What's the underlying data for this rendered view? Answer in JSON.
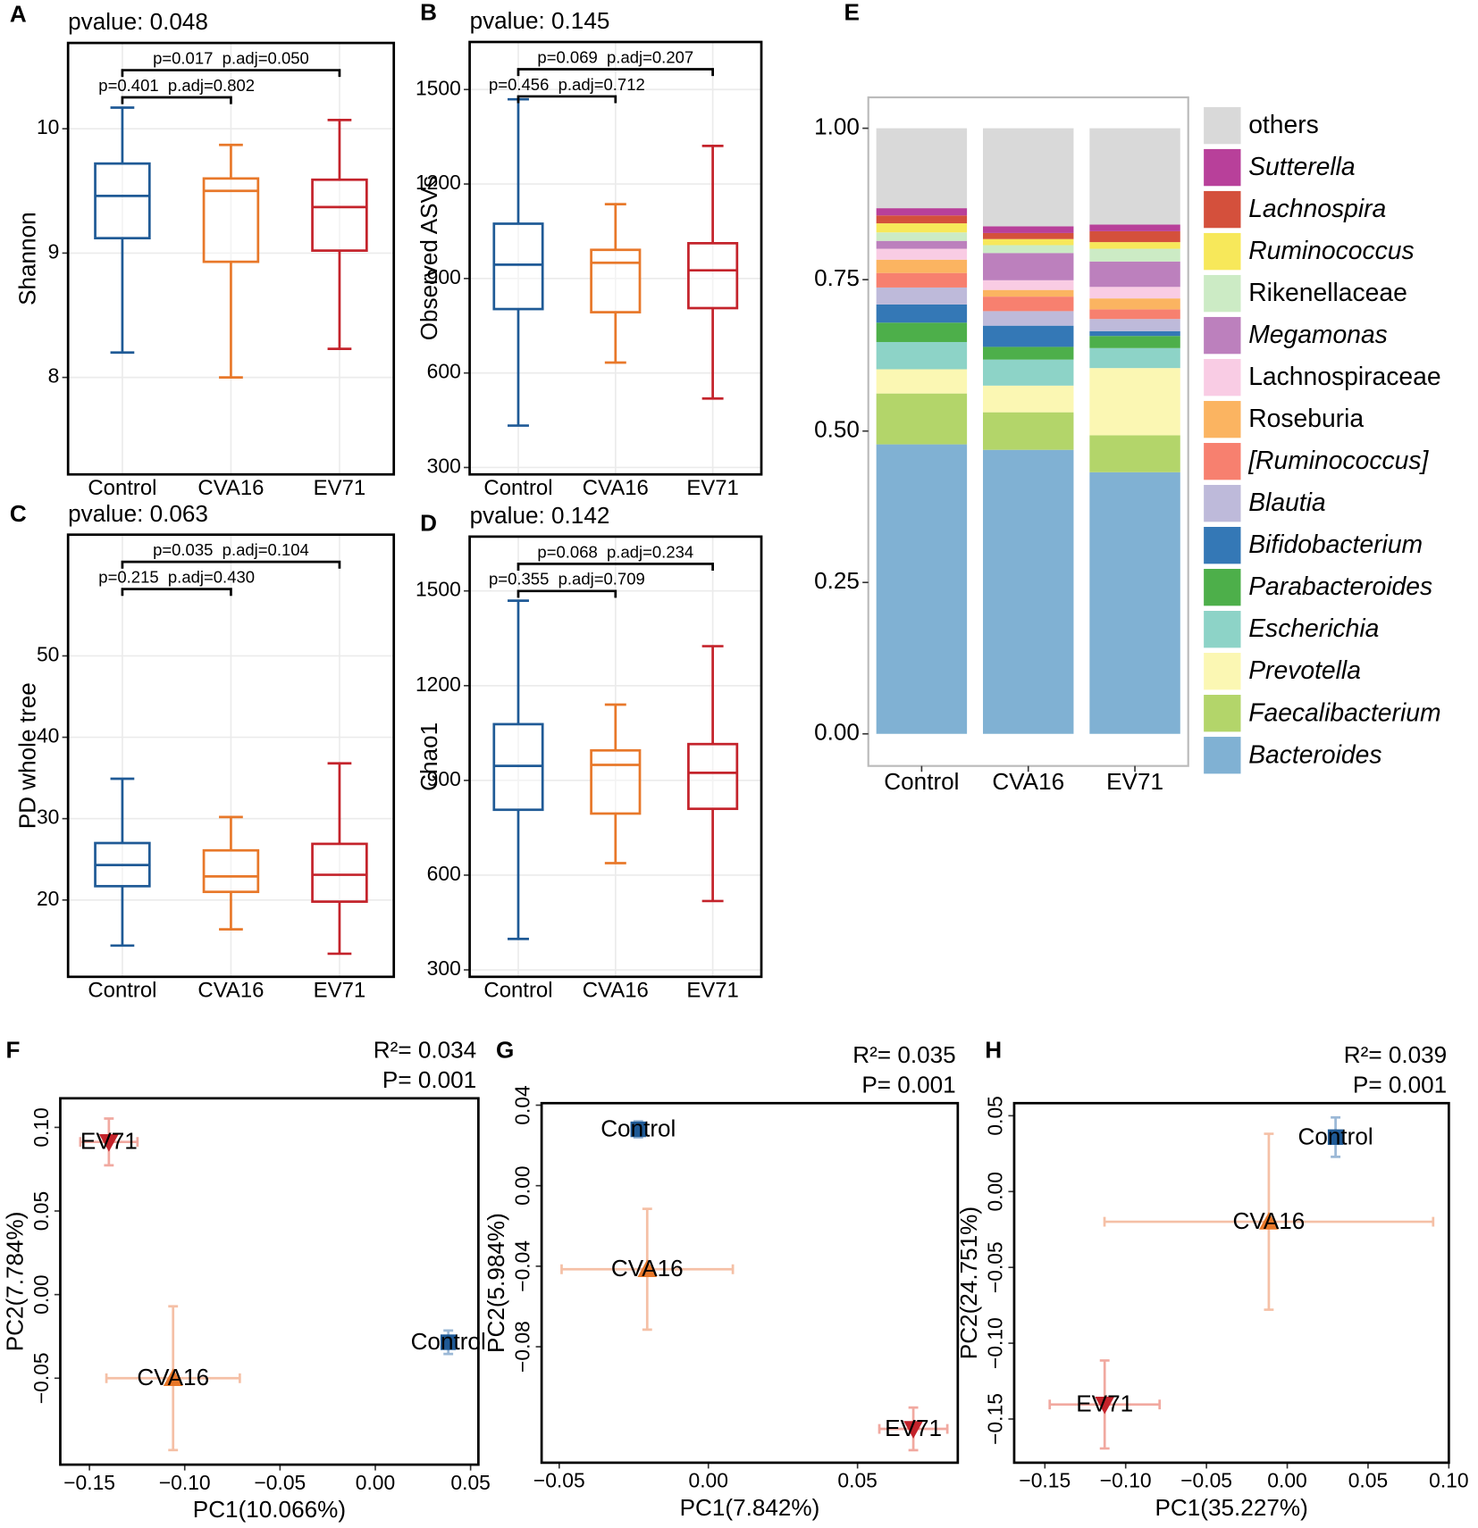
{
  "chart_data": [
    {
      "type": "box",
      "panel": "A",
      "title": "pvalue: 0.048",
      "ylabel": "Shannon",
      "categories": [
        "Control",
        "CVA16",
        "EV71"
      ],
      "colors": [
        "#1f5a96",
        "#e8782a",
        "#c4232b"
      ],
      "boxes": [
        {
          "min": 8.2,
          "q1": 9.12,
          "median": 9.46,
          "q3": 9.72,
          "max": 10.17
        },
        {
          "min": 8.0,
          "q1": 8.93,
          "median": 9.5,
          "q3": 9.6,
          "max": 9.87
        },
        {
          "min": 8.23,
          "q1": 9.02,
          "median": 9.37,
          "q3": 9.59,
          "max": 10.07
        }
      ],
      "ylim": [
        7.22,
        10.69
      ],
      "yticks": [
        8,
        9,
        10
      ],
      "grid": true,
      "comparisons": [
        {
          "label": "p=0.401  p.adj=0.802",
          "pair": [
            "Control",
            "CVA16"
          ]
        },
        {
          "label": "p=0.017  p.adj=0.050",
          "pair": [
            "Control",
            "EV71"
          ]
        }
      ]
    },
    {
      "type": "box",
      "panel": "B",
      "title": "pvalue: 0.145",
      "ylabel": "Observed ASVs",
      "categories": [
        "Control",
        "CVA16",
        "EV71"
      ],
      "colors": [
        "#1f5a96",
        "#e8782a",
        "#c4232b"
      ],
      "boxes": [
        {
          "min": 433,
          "q1": 803,
          "median": 944,
          "q3": 1074,
          "max": 1469
        },
        {
          "min": 633,
          "q1": 793,
          "median": 950,
          "q3": 991,
          "max": 1136
        },
        {
          "min": 519,
          "q1": 806,
          "median": 926,
          "q3": 1012,
          "max": 1321
        }
      ],
      "ylim": [
        278,
        1651
      ],
      "yticks": [
        300,
        600,
        900,
        1200,
        1500
      ],
      "grid": true,
      "comparisons": [
        {
          "label": "p=0.456  p.adj=0.712",
          "pair": [
            "Control",
            "CVA16"
          ]
        },
        {
          "label": "p=0.069  p.adj=0.207",
          "pair": [
            "Control",
            "EV71"
          ]
        }
      ]
    },
    {
      "type": "box",
      "panel": "C",
      "title": "pvalue: 0.063",
      "ylabel": "PD whole tree",
      "categories": [
        "Control",
        "CVA16",
        "EV71"
      ],
      "colors": [
        "#1f5a96",
        "#e8782a",
        "#c4232b"
      ],
      "boxes": [
        {
          "min": 14.4,
          "q1": 21.7,
          "median": 24.3,
          "q3": 27.0,
          "max": 34.9
        },
        {
          "min": 16.4,
          "q1": 21.0,
          "median": 22.9,
          "q3": 26.1,
          "max": 30.2
        },
        {
          "min": 13.4,
          "q1": 19.8,
          "median": 23.1,
          "q3": 26.9,
          "max": 36.8
        }
      ],
      "ylim": [
        10.56,
        64.9
      ],
      "yticks": [
        20,
        30,
        40,
        50
      ],
      "grid": true,
      "comparisons": [
        {
          "label": "p=0.215  p.adj=0.430",
          "pair": [
            "Control",
            "CVA16"
          ]
        },
        {
          "label": "p=0.035  p.adj=0.104",
          "pair": [
            "Control",
            "EV71"
          ]
        }
      ]
    },
    {
      "type": "box",
      "panel": "D",
      "title": "pvalue: 0.142",
      "ylabel": "Chao1",
      "categories": [
        "Control",
        "CVA16",
        "EV71"
      ],
      "colors": [
        "#1f5a96",
        "#e8782a",
        "#c4232b"
      ],
      "boxes": [
        {
          "min": 398,
          "q1": 807,
          "median": 946,
          "q3": 1078,
          "max": 1469
        },
        {
          "min": 638,
          "q1": 795,
          "median": 949,
          "q3": 995,
          "max": 1140
        },
        {
          "min": 518,
          "q1": 810,
          "median": 924,
          "q3": 1015,
          "max": 1325
        }
      ],
      "ylim": [
        278,
        1672
      ],
      "yticks": [
        300,
        600,
        900,
        1200,
        1500
      ],
      "grid": true,
      "comparisons": [
        {
          "label": "p=0.355  p.adj=0.709",
          "pair": [
            "Control",
            "CVA16"
          ]
        },
        {
          "label": "p=0.068  p.adj=0.234",
          "pair": [
            "Control",
            "EV71"
          ]
        }
      ]
    },
    {
      "type": "stacked_bar",
      "panel": "E",
      "categories": [
        "Control",
        "CVA16",
        "EV71"
      ],
      "ylim": [
        -0.053,
        1.051
      ],
      "yticks": [
        {
          "value": 0,
          "label": "0.00"
        },
        {
          "value": 0.25,
          "label": "0.25"
        },
        {
          "value": 0.5,
          "label": "0.50"
        },
        {
          "value": 0.75,
          "label": "0.75"
        },
        {
          "value": 1,
          "label": "1.00"
        }
      ],
      "series": [
        {
          "name": "Bacteroides",
          "color": "#80b1d3",
          "italic": true,
          "values": [
            0.478,
            0.469,
            0.432
          ]
        },
        {
          "name": "Faecalibacterium",
          "color": "#b3d56a",
          "italic": true,
          "values": [
            0.084,
            0.062,
            0.061
          ]
        },
        {
          "name": "Prevotella",
          "color": "#fbf7b3",
          "italic": true,
          "values": [
            0.04,
            0.044,
            0.111
          ]
        },
        {
          "name": "Escherichia",
          "color": "#8dd3c7",
          "italic": true,
          "values": [
            0.045,
            0.043,
            0.033
          ]
        },
        {
          "name": "Parabacteroides",
          "color": "#4daf4a",
          "italic": true,
          "values": [
            0.032,
            0.021,
            0.02
          ]
        },
        {
          "name": "Bifidobacterium",
          "color": "#3478b6",
          "italic": true,
          "values": [
            0.03,
            0.035,
            0.008
          ]
        },
        {
          "name": "Blautia",
          "color": "#bebada",
          "italic": true,
          "values": [
            0.028,
            0.024,
            0.02
          ]
        },
        {
          "name": "[Ruminococcus]",
          "color": "#f7806f",
          "italic": true,
          "values": [
            0.024,
            0.024,
            0.016
          ]
        },
        {
          "name": "Roseburia",
          "color": "#fbb461",
          "italic": false,
          "values": [
            0.022,
            0.011,
            0.018
          ]
        },
        {
          "name": "Lachnospiraceae",
          "color": "#f9cce4",
          "italic": false,
          "values": [
            0.018,
            0.016,
            0.019
          ]
        },
        {
          "name": "Megamonas",
          "color": "#bc80bd",
          "italic": true,
          "values": [
            0.013,
            0.045,
            0.042
          ]
        },
        {
          "name": "Rikenellaceae",
          "color": "#ccebc5",
          "italic": false,
          "values": [
            0.014,
            0.013,
            0.021
          ]
        },
        {
          "name": "Ruminococcus",
          "color": "#f7e85a",
          "italic": true,
          "values": [
            0.015,
            0.01,
            0.011
          ]
        },
        {
          "name": "Lachnospira",
          "color": "#d4503c",
          "italic": true,
          "values": [
            0.013,
            0.01,
            0.018
          ]
        },
        {
          "name": "Sutterella",
          "color": "#b8409a",
          "italic": true,
          "values": [
            0.012,
            0.011,
            0.011
          ]
        },
        {
          "name": "others",
          "color": "#d9d9d9",
          "italic": false,
          "values": [
            0.132,
            0.162,
            0.159
          ]
        }
      ]
    },
    {
      "type": "scatter",
      "panel": "F",
      "annotations": [
        "R²= 0.034",
        "P= 0.001"
      ],
      "xlabel": "PC1(10.066%)",
      "ylabel": "PC2(7.784%)",
      "xlim": [
        -0.1653,
        0.0541
      ],
      "ylim": [
        -0.1017,
        0.1174
      ],
      "xticks": [
        {
          "value": -0.15,
          "label": "−0.15"
        },
        {
          "value": -0.1,
          "label": "−0.10"
        },
        {
          "value": -0.05,
          "label": "−0.05"
        },
        {
          "value": 0,
          "label": "0.00"
        },
        {
          "value": 0.05,
          "label": "0.05"
        }
      ],
      "yticks": [
        {
          "value": -0.05,
          "label": "−0.05"
        },
        {
          "value": 0,
          "label": "0.00"
        },
        {
          "value": 0.05,
          "label": "0.05"
        },
        {
          "value": 0.1,
          "label": "0.10"
        }
      ],
      "series": [
        {
          "name": "Control",
          "color": "#1f5a96",
          "marker": "square",
          "error_color": "#9bb8d6",
          "x": [
            0.0383
          ],
          "y": [
            -0.0285
          ],
          "xerr": [
            0.002
          ],
          "yerr": [
            0.007
          ]
        },
        {
          "name": "CVA16",
          "color": "#e8782a",
          "marker": "triangle",
          "error_color": "#f5c0a6",
          "x": [
            -0.1061
          ],
          "y": [
            -0.05
          ],
          "xerr": [
            0.035
          ],
          "yerr": [
            0.043
          ]
        },
        {
          "name": "EV71",
          "color": "#c4232b",
          "marker": "triangle-down",
          "error_color": "#f1a9a0",
          "x": [
            -0.1398
          ],
          "y": [
            0.0913
          ],
          "xerr": [
            0.015
          ],
          "yerr": [
            0.014
          ]
        }
      ]
    },
    {
      "type": "scatter",
      "panel": "G",
      "annotations": [
        "R²= 0.035",
        "P= 0.001"
      ],
      "xlabel": "PC1(7.842%)",
      "ylabel": "PC2(5.984%)",
      "xlim": [
        -0.0559,
        0.0836
      ],
      "ylim": [
        -0.1376,
        0.041
      ],
      "xticks": [
        {
          "value": -0.05,
          "label": "−0.05"
        },
        {
          "value": 0,
          "label": "0.00"
        },
        {
          "value": 0.05,
          "label": "0.05"
        }
      ],
      "yticks": [
        {
          "value": -0.08,
          "label": "−0.08"
        },
        {
          "value": -0.04,
          "label": "−0.04"
        },
        {
          "value": 0,
          "label": "0.00"
        },
        {
          "value": 0.04,
          "label": "0.04"
        }
      ],
      "series": [
        {
          "name": "Control",
          "color": "#1f5a96",
          "marker": "square",
          "error_color": "#9bb8d6",
          "x": [
            -0.0235
          ],
          "y": [
            0.028
          ],
          "xerr": [
            0.002
          ],
          "yerr": [
            0.004
          ]
        },
        {
          "name": "CVA16",
          "color": "#e8782a",
          "marker": "triangle",
          "error_color": "#f5c0a6",
          "x": [
            -0.0205
          ],
          "y": [
            -0.0415
          ],
          "xerr": [
            0.0287
          ],
          "yerr": [
            0.03
          ]
        },
        {
          "name": "EV71",
          "color": "#c4232b",
          "marker": "triangle-down",
          "error_color": "#f1a9a0",
          "x": [
            0.0687
          ],
          "y": [
            -0.1208
          ],
          "xerr": [
            0.0114
          ],
          "yerr": [
            0.0106
          ]
        }
      ]
    },
    {
      "type": "scatter",
      "panel": "H",
      "annotations": [
        "R²= 0.039",
        "P= 0.001"
      ],
      "xlabel": "PC1(35.227%)",
      "ylabel": "PC2(24.751%)",
      "xlim": [
        -0.169,
        0.1
      ],
      "ylim": [
        -0.1788,
        0.0583
      ],
      "xticks": [
        {
          "value": -0.15,
          "label": "−0.15"
        },
        {
          "value": -0.1,
          "label": "−0.10"
        },
        {
          "value": -0.05,
          "label": "−0.05"
        },
        {
          "value": 0,
          "label": "0.00"
        },
        {
          "value": 0.05,
          "label": "0.05"
        },
        {
          "value": 0.1,
          "label": "0.10"
        }
      ],
      "yticks": [
        {
          "value": -0.15,
          "label": "−0.15"
        },
        {
          "value": -0.1,
          "label": "−0.10"
        },
        {
          "value": -0.05,
          "label": "−0.05"
        },
        {
          "value": 0,
          "label": "0.00"
        },
        {
          "value": 0.05,
          "label": "0.05"
        }
      ],
      "series": [
        {
          "name": "Control",
          "color": "#1f5a96",
          "marker": "square",
          "error_color": "#9bb8d6",
          "x": [
            0.0299
          ],
          "y": [
            0.0359
          ],
          "xerr": [
            0.002
          ],
          "yerr": [
            0.013
          ]
        },
        {
          "name": "CVA16",
          "color": "#e8782a",
          "marker": "triangle",
          "error_color": "#f5c0a6",
          "x": [
            -0.0114
          ],
          "y": [
            -0.0199
          ],
          "xerr": [
            0.1017
          ],
          "yerr": [
            0.058
          ]
        },
        {
          "name": "EV71",
          "color": "#c4232b",
          "marker": "triangle-down",
          "error_color": "#f1a9a0",
          "x": [
            -0.113
          ],
          "y": [
            -0.1404
          ],
          "xerr": [
            0.034
          ],
          "yerr": [
            0.029
          ]
        }
      ]
    }
  ]
}
